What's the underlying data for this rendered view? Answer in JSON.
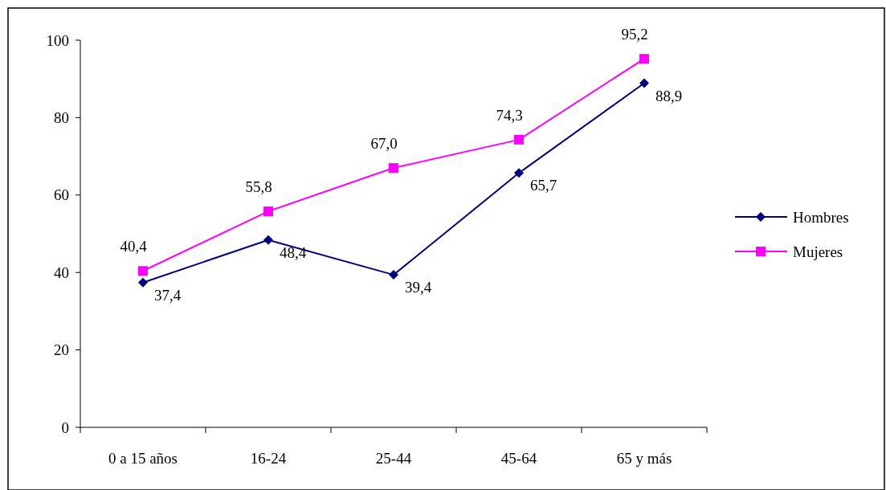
{
  "chart_data": {
    "type": "line",
    "categories": [
      "0 a 15 años",
      "16-24",
      "25-44",
      "45-64",
      "65 y más"
    ],
    "series": [
      {
        "name": "Hombres",
        "color": "#000080",
        "marker": "diamond",
        "values": [
          37.4,
          48.4,
          39.4,
          65.7,
          88.9
        ],
        "value_labels": [
          "37,4",
          "48,4",
          "39,4",
          "65,7",
          "88,9"
        ]
      },
      {
        "name": "Mujeres",
        "color": "#ff00ff",
        "marker": "square",
        "values": [
          40.4,
          55.8,
          67.0,
          74.3,
          95.2
        ],
        "value_labels": [
          "40,4",
          "55,8",
          "67,0",
          "74,3",
          "95,2"
        ]
      }
    ],
    "ylim": [
      0,
      100
    ],
    "yticks": [
      0,
      20,
      40,
      60,
      80,
      100
    ],
    "grid": false,
    "legend": "right"
  }
}
